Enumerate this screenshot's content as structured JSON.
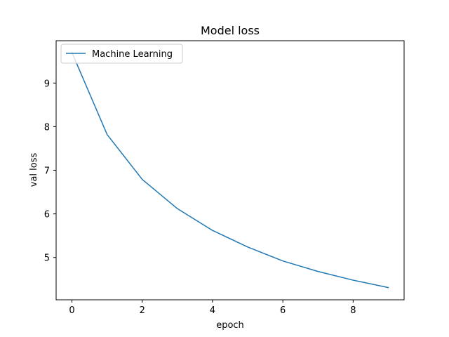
{
  "chart_data": {
    "type": "line",
    "title": "Model loss",
    "xlabel": "epoch",
    "ylabel": "val loss",
    "xlim": [
      -0.45,
      9.45
    ],
    "ylim": [
      4.03,
      9.97
    ],
    "xticks": [
      0,
      2,
      4,
      6,
      8
    ],
    "yticks": [
      5,
      6,
      7,
      8,
      9
    ],
    "grid": false,
    "legend_position": "upper-left",
    "series": [
      {
        "name": "Machine Learning",
        "color": "#1f77b4",
        "x": [
          0,
          1,
          2,
          3,
          4,
          5,
          6,
          7,
          8,
          9
        ],
        "y": [
          9.7,
          7.82,
          6.79,
          6.12,
          5.62,
          5.24,
          4.92,
          4.68,
          4.48,
          4.31
        ]
      }
    ]
  }
}
